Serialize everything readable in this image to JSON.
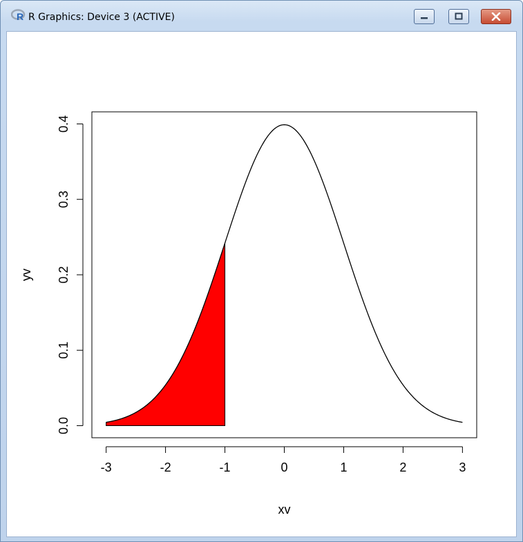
{
  "window": {
    "title": "R Graphics: Device 3 (ACTIVE)",
    "icon": "r-logo-icon",
    "controls": [
      "minimize-icon",
      "maximize-icon",
      "close-icon"
    ]
  },
  "chart_data": {
    "type": "line",
    "title": "",
    "xlabel": "xv",
    "ylabel": "yv",
    "xlim": [
      -3,
      3
    ],
    "ylim": [
      0,
      0.4
    ],
    "x_ticks": [
      -3,
      -2,
      -1,
      0,
      1,
      2,
      3
    ],
    "y_ticks": [
      0.0,
      0.1,
      0.2,
      0.3,
      0.4
    ],
    "x_tick_labels": [
      "-3",
      "-2",
      "-1",
      "0",
      "1",
      "2",
      "3"
    ],
    "y_tick_labels": [
      "0.0",
      "0.1",
      "0.2",
      "0.3",
      "0.4"
    ],
    "series": [
      {
        "x": [
          -3,
          -2.5,
          -2,
          -1.5,
          -1,
          -0.5,
          0,
          0.5,
          1,
          1.5,
          2,
          2.5,
          3
        ],
        "values": [
          0.004,
          0.018,
          0.054,
          0.13,
          0.242,
          0.352,
          0.399,
          0.352,
          0.242,
          0.13,
          0.054,
          0.018,
          0.004
        ],
        "color": "#000000"
      }
    ],
    "shaded_region": {
      "x_from": -3,
      "x_to": -1,
      "fill": "#ff0000",
      "edge": "#000000"
    },
    "grid": false,
    "legend": "none"
  }
}
